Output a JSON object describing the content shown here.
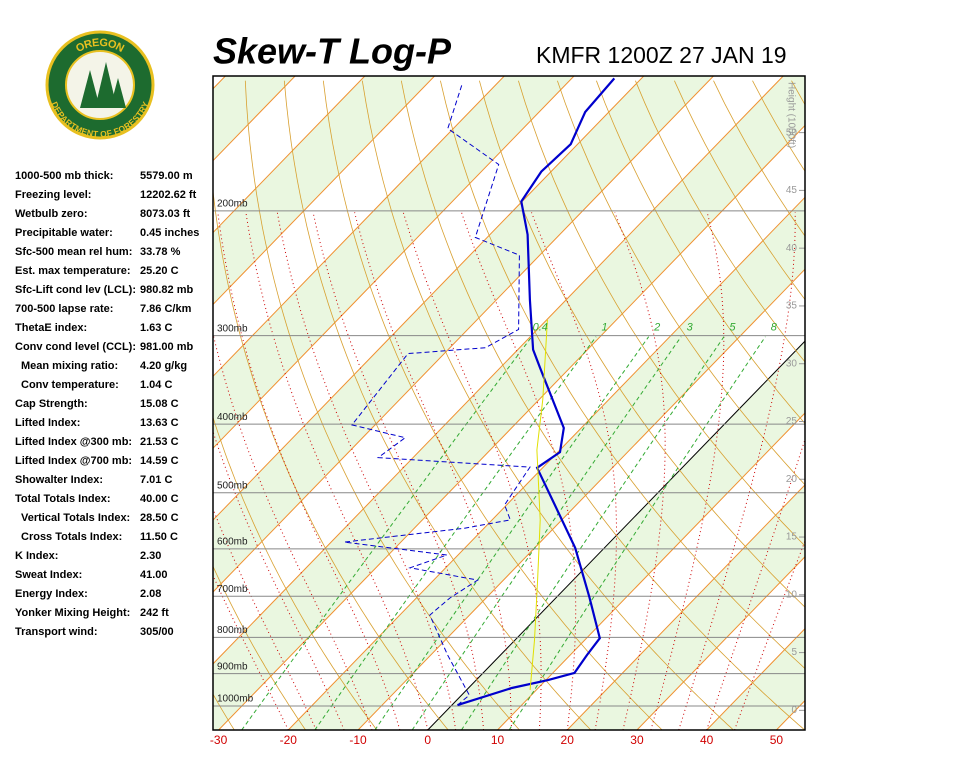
{
  "logo": {
    "top": "OREGON",
    "bottom": "DEPARTMENT OF FORESTRY"
  },
  "stats": {
    "rows": [
      [
        "1000-500 mb thick:",
        "5579.00 m"
      ],
      [
        "Freezing level:",
        "12202.62 ft"
      ],
      [
        "Wetbulb zero:",
        "8073.03 ft"
      ],
      [
        "Precipitable water:",
        "0.45 inches"
      ],
      [
        "Sfc-500 mean rel hum:",
        "33.78 %"
      ],
      [
        "Est. max temperature:",
        "25.20 C"
      ],
      [
        "Sfc-Lift cond lev (LCL):",
        "980.82 mb"
      ],
      [
        "700-500 lapse rate:",
        "7.86 C/km"
      ],
      [
        "ThetaE index:",
        "1.63 C"
      ],
      [
        "Conv cond level (CCL):",
        "981.00 mb"
      ],
      [
        "Mean mixing ratio:",
        "4.20 g/kg"
      ],
      [
        "Conv temperature:",
        "1.04 C"
      ],
      [
        "Cap Strength:",
        "15.08 C"
      ],
      [
        "Lifted Index:",
        "13.63 C"
      ],
      [
        "Lifted Index @300 mb:",
        "21.53 C"
      ],
      [
        "Lifted Index @700 mb:",
        "14.59 C"
      ],
      [
        "Showalter Index:",
        "7.01 C"
      ],
      [
        "Total Totals Index:",
        "40.00 C"
      ],
      [
        "Vertical Totals Index:",
        "28.50 C"
      ],
      [
        "Cross Totals Index:",
        "11.50 C"
      ],
      [
        "K Index:",
        "2.30"
      ],
      [
        "Sweat Index:",
        "41.00"
      ],
      [
        "Energy Index:",
        "2.08"
      ],
      [
        "Yonker Mixing Height:",
        "242 ft"
      ],
      [
        "Transport wind:",
        "305/00"
      ]
    ]
  },
  "chart_data": {
    "type": "skewt",
    "title": "Skew-T Log-P",
    "subtitle": "KMFR 1200Z 27 JAN 19",
    "xlim": [
      -30.8,
      54.1
    ],
    "xticks": [
      -30,
      -20,
      -10,
      0,
      10,
      20,
      30,
      40,
      50
    ],
    "ylim": [
      1081,
      129
    ],
    "log_y": true,
    "yticks": [
      {
        "value": 1000,
        "label": "1000mb"
      },
      {
        "value": 900,
        "label": "900mb"
      },
      {
        "value": 800,
        "label": "800mb"
      },
      {
        "value": 700,
        "label": "700mb"
      },
      {
        "value": 600,
        "label": "600mb"
      },
      {
        "value": 500,
        "label": "500mb"
      },
      {
        "value": 400,
        "label": "400mb"
      },
      {
        "value": 300,
        "label": "300mb"
      },
      {
        "value": 200,
        "label": "200mb"
      }
    ],
    "y2label": "Height (1000ft)",
    "y2lim": [
      -1.7,
      54.9
    ],
    "y2ticks": [
      0,
      5,
      10,
      15,
      20,
      25,
      30,
      35,
      40,
      45,
      50
    ],
    "mixing_ratios": [
      0.4,
      1,
      2,
      3,
      5,
      8
    ],
    "series": [
      {
        "color": "#0000cc",
        "style": "solid",
        "pressure": [
          997,
          943,
          919,
          898,
          847,
          802,
          702,
          598,
          520,
          461,
          438,
          405,
          333,
          314,
          267,
          216,
          194,
          176,
          161,
          145,
          130
        ],
        "values": [
          0.8,
          6.2,
          10.3,
          13.1,
          12.4,
          11.9,
          4.7,
          -4.2,
          -13.1,
          -20.8,
          -19.7,
          -22.5,
          -34.3,
          -37.8,
          -45.2,
          -54.6,
          -60.1,
          -61.4,
          -61.0,
          -63.4,
          -63.9
        ]
      },
      {
        "color": "#0000cc",
        "style": "dashed",
        "pressure": [
          997,
          965,
          847,
          744,
          704,
          664,
          638,
          612,
          587,
          561,
          546,
          520,
          460,
          446,
          418,
          401,
          318,
          312,
          294,
          231,
          218,
          172,
          153,
          133
        ],
        "values": [
          0.8,
          1.1,
          -7.6,
          -15.7,
          -15.2,
          -13.7,
          -25.1,
          -21.6,
          -38.1,
          -22.8,
          -17.4,
          -20.3,
          -21.9,
          -45.0,
          -43.9,
          -53.3,
          -55.2,
          -44.9,
          -42.7,
          -52.9,
          -61.7,
          -68.5,
          -80.8,
          -84.8
        ]
      },
      {
        "color": "#e0e000",
        "style": "solid",
        "pressure": [
          949,
          807,
          664,
          546,
          435,
          369,
          285
        ],
        "values": [
          9.1,
          2.8,
          -5.1,
          -13.1,
          -23.3,
          -29.5,
          -39.9
        ]
      }
    ]
  }
}
